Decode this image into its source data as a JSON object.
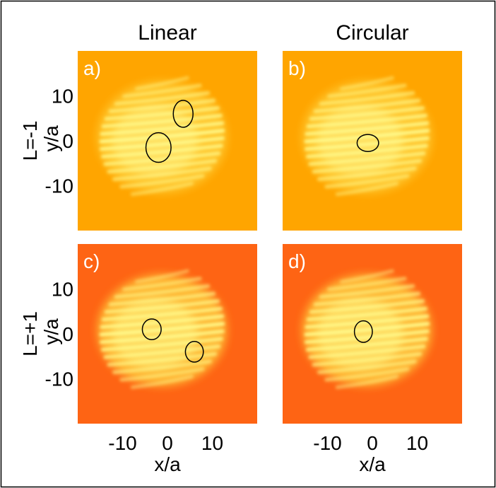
{
  "columns": [
    "Linear",
    "Circular"
  ],
  "rows": [
    "L=-1",
    "L=+1"
  ],
  "panels": [
    {
      "label": "a)",
      "theme": "orange",
      "vortices": [
        {
          "x": 3.5,
          "y": 6.0,
          "rx": 2.2,
          "ry": 3.0
        },
        {
          "x": -2.0,
          "y": -1.5,
          "rx": 2.8,
          "ry": 3.3
        }
      ]
    },
    {
      "label": "b)",
      "theme": "orange",
      "vortices": [
        {
          "x": -1.0,
          "y": -0.5,
          "rx": 2.4,
          "ry": 1.9
        }
      ]
    },
    {
      "label": "c)",
      "theme": "red",
      "vortices": [
        {
          "x": -3.5,
          "y": 1.0,
          "rx": 2.1,
          "ry": 2.3
        },
        {
          "x": 6.0,
          "y": -4.0,
          "rx": 2.0,
          "ry": 2.3
        }
      ]
    },
    {
      "label": "d)",
      "theme": "red",
      "vortices": [
        {
          "x": -2.0,
          "y": 0.5,
          "rx": 2.0,
          "ry": 2.4
        }
      ]
    }
  ],
  "axes": {
    "xlabel": "x/a",
    "ylabel": "y/a",
    "xticks": [
      {
        "v": -10,
        "t": "-10"
      },
      {
        "v": 0,
        "t": "0"
      },
      {
        "v": 10,
        "t": "10"
      }
    ],
    "yticks": [
      {
        "v": 10,
        "t": "10"
      },
      {
        "v": 0,
        "t": "0"
      },
      {
        "v": -10,
        "t": "-10"
      }
    ],
    "xlim": [
      -20,
      20
    ],
    "ylim": [
      -20,
      20
    ]
  },
  "colors": {
    "orange_bg": "#ffa500",
    "red_bg": "#fe6414",
    "fringe_bright": "#fffb8c",
    "vortex_stroke": "#000000",
    "frame": "#000000"
  }
}
